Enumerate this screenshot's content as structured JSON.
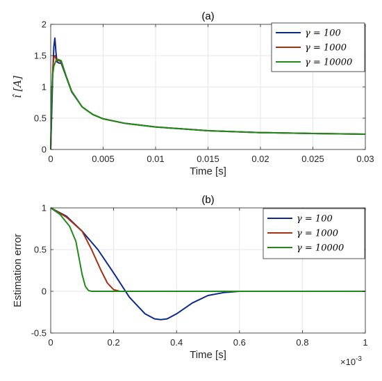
{
  "chart_data": [
    {
      "type": "line",
      "title": "(a)",
      "xlabel": "Time [s]",
      "ylabel": "î [A]",
      "xlim": [
        0,
        0.03
      ],
      "ylim": [
        0,
        2
      ],
      "xticks": [
        "0",
        "0.005",
        "0.01",
        "0.015",
        "0.02",
        "0.025",
        "0.03"
      ],
      "yticks": [
        "0",
        "0.5",
        "1",
        "1.5",
        "2"
      ],
      "grid": true,
      "legend_position": "top-right",
      "series": [
        {
          "name": "γ = 100",
          "color": "#0b2a8a",
          "x": [
            0,
            0.0001,
            0.0002,
            0.0003,
            0.0004,
            0.0005,
            0.0006,
            0.0008,
            0.001,
            0.0015,
            0.002,
            0.003,
            0.004,
            0.005,
            0.007,
            0.01,
            0.015,
            0.02,
            0.025,
            0.03
          ],
          "y": [
            0,
            0.6,
            1.25,
            1.65,
            1.78,
            1.55,
            1.4,
            1.38,
            1.38,
            1.15,
            0.92,
            0.68,
            0.56,
            0.49,
            0.42,
            0.36,
            0.3,
            0.27,
            0.255,
            0.245
          ]
        },
        {
          "name": "γ = 1000",
          "color": "#a3300f",
          "x": [
            0,
            0.0001,
            0.0002,
            0.0003,
            0.0004,
            0.0005,
            0.0006,
            0.0008,
            0.001,
            0.0015,
            0.002,
            0.003,
            0.004,
            0.005,
            0.007,
            0.01,
            0.015,
            0.02,
            0.025,
            0.03
          ],
          "y": [
            0,
            0.9,
            1.3,
            1.47,
            1.5,
            1.45,
            1.42,
            1.42,
            1.4,
            1.16,
            0.93,
            0.68,
            0.56,
            0.49,
            0.42,
            0.36,
            0.3,
            0.27,
            0.255,
            0.245
          ]
        },
        {
          "name": "γ = 10000",
          "color": "#1f8a1a",
          "x": [
            0,
            0.0001,
            0.0002,
            0.0003,
            0.0005,
            0.0007,
            0.001,
            0.0015,
            0.002,
            0.003,
            0.004,
            0.005,
            0.007,
            0.01,
            0.015,
            0.02,
            0.025,
            0.03
          ],
          "y": [
            0,
            0.95,
            1.2,
            1.33,
            1.42,
            1.44,
            1.42,
            1.16,
            0.93,
            0.68,
            0.56,
            0.49,
            0.42,
            0.36,
            0.3,
            0.27,
            0.255,
            0.245
          ]
        }
      ]
    },
    {
      "type": "line",
      "title": "(b)",
      "xlabel": "Time [s]",
      "ylabel": "Estimation error",
      "x_exponent_base": "×10",
      "x_exponent_power": "-3",
      "xlim": [
        0,
        1
      ],
      "ylim": [
        -0.5,
        1
      ],
      "xticks": [
        "0",
        "0.2",
        "0.4",
        "0.6",
        "0.8",
        "1"
      ],
      "yticks": [
        "-0.5",
        "0",
        "0.5",
        "1"
      ],
      "grid": true,
      "legend_position": "top-right",
      "series": [
        {
          "name": "γ = 100",
          "color": "#0b2a8a",
          "x": [
            0,
            0.05,
            0.1,
            0.15,
            0.2,
            0.25,
            0.3,
            0.33,
            0.35,
            0.37,
            0.4,
            0.45,
            0.5,
            0.55,
            0.6,
            0.65,
            0.7,
            0.8,
            0.9,
            1.0
          ],
          "y": [
            1,
            0.9,
            0.72,
            0.5,
            0.22,
            -0.07,
            -0.27,
            -0.33,
            -0.34,
            -0.33,
            -0.27,
            -0.14,
            -0.05,
            -0.015,
            0,
            0,
            0,
            0,
            0,
            0
          ]
        },
        {
          "name": "γ = 1000",
          "color": "#a3300f",
          "x": [
            0,
            0.05,
            0.1,
            0.13,
            0.16,
            0.18,
            0.2,
            0.22,
            0.25,
            0.4,
            0.6,
            0.8,
            1.0
          ],
          "y": [
            1,
            0.89,
            0.72,
            0.5,
            0.25,
            0.1,
            0.02,
            0,
            0,
            0,
            0,
            0,
            0
          ]
        },
        {
          "name": "γ = 10000",
          "color": "#1f8a1a",
          "x": [
            0,
            0.03,
            0.06,
            0.08,
            0.09,
            0.1,
            0.11,
            0.12,
            0.13,
            0.2,
            0.4,
            0.6,
            0.8,
            1.0
          ],
          "y": [
            1,
            0.92,
            0.78,
            0.6,
            0.4,
            0.2,
            0.06,
            0.01,
            0,
            0,
            0,
            0,
            0,
            0
          ]
        }
      ]
    }
  ]
}
